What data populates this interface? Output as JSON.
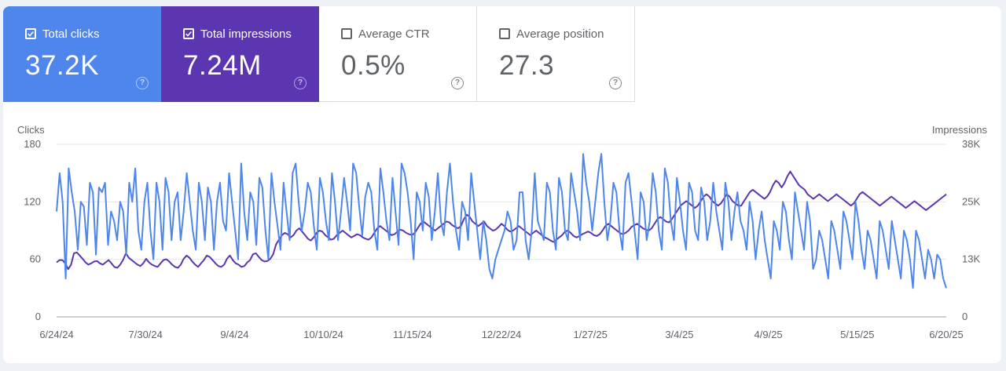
{
  "metrics": {
    "clicks": {
      "label": "Total clicks",
      "value": "37.2K",
      "checked": true,
      "color": "#4e86eb"
    },
    "impressions": {
      "label": "Total impressions",
      "value": "7.24M",
      "checked": true,
      "color": "#5c35b0"
    },
    "ctr": {
      "label": "Average CTR",
      "value": "0.5%",
      "checked": false
    },
    "position": {
      "label": "Average position",
      "value": "27.3",
      "checked": false
    }
  },
  "help_glyph": "?",
  "chart_data": {
    "type": "line",
    "xlabel": "",
    "left_axis_title": "Clicks",
    "right_axis_title": "Impressions",
    "y_left": {
      "range": [
        0,
        180
      ],
      "ticks": [
        "0",
        "60",
        "120",
        "180"
      ]
    },
    "y_right": {
      "range": [
        0,
        38000
      ],
      "ticks": [
        "0",
        "13K",
        "25K",
        "38K"
      ]
    },
    "x_ticks": [
      "6/24/24",
      "7/30/24",
      "9/4/24",
      "10/10/24",
      "11/15/24",
      "12/22/24",
      "1/27/25",
      "3/4/25",
      "4/9/25",
      "5/15/25",
      "6/20/25"
    ],
    "grid": true,
    "series": [
      {
        "name": "Clicks",
        "axis": "left",
        "color": "#4e86eb",
        "values": [
          110,
          150,
          120,
          40,
          155,
          130,
          110,
          70,
          120,
          115,
          75,
          140,
          130,
          65,
          135,
          130,
          140,
          75,
          110,
          100,
          80,
          120,
          110,
          65,
          140,
          120,
          155,
          90,
          70,
          120,
          140,
          90,
          60,
          140,
          120,
          70,
          145,
          130,
          80,
          120,
          130,
          80,
          110,
          150,
          120,
          90,
          70,
          140,
          120,
          80,
          135,
          120,
          70,
          120,
          140,
          100,
          90,
          150,
          120,
          90,
          60,
          160,
          110,
          80,
          130,
          120,
          75,
          145,
          135,
          90,
          60,
          150,
          120,
          95,
          70,
          140,
          110,
          80,
          150,
          160,
          120,
          90,
          110,
          140,
          130,
          95,
          70,
          145,
          130,
          100,
          80,
          150,
          120,
          80,
          110,
          145,
          120,
          90,
          160,
          150,
          115,
          85,
          125,
          140,
          130,
          90,
          70,
          155,
          130,
          100,
          80,
          145,
          110,
          75,
          160,
          150,
          130,
          100,
          60,
          130,
          120,
          90,
          140,
          125,
          80,
          110,
          150,
          100,
          85,
          130,
          160,
          120,
          90,
          70,
          120,
          110,
          80,
          150,
          120,
          90,
          60,
          100,
          80,
          50,
          40,
          60,
          70,
          80,
          90,
          110,
          100,
          70,
          80,
          130,
          130,
          80,
          60,
          90,
          150,
          100,
          90,
          80,
          140,
          130,
          90,
          70,
          145,
          130,
          90,
          80,
          150,
          130,
          110,
          80,
          170,
          140,
          120,
          90,
          120,
          150,
          170,
          120,
          80,
          100,
          140,
          130,
          90,
          70,
          140,
          150,
          120,
          90,
          60,
          130,
          120,
          80,
          100,
          150,
          130,
          90,
          70,
          155,
          140,
          100,
          80,
          145,
          120,
          90,
          70,
          140,
          130,
          90,
          80,
          135,
          120,
          80,
          100,
          140,
          110,
          90,
          70,
          140,
          120,
          80,
          110,
          130,
          100,
          90,
          70,
          120,
          100,
          60,
          90,
          110,
          80,
          60,
          40,
          100,
          90,
          70,
          120,
          110,
          80,
          60,
          130,
          110,
          90,
          70,
          120,
          100,
          50,
          60,
          90,
          80,
          60,
          40,
          100,
          90,
          70,
          50,
          110,
          100,
          80,
          60,
          120,
          100,
          70,
          50,
          90,
          80,
          60,
          40,
          100,
          90,
          70,
          50,
          100,
          80,
          60,
          40,
          90,
          80,
          60,
          30,
          90,
          80,
          60,
          40,
          70,
          60,
          40,
          65,
          60,
          40,
          30
        ]
      },
      {
        "name": "Impressions",
        "axis": "right",
        "color": "#5c35b0",
        "values": [
          12000,
          12500,
          12500,
          11800,
          10500,
          11500,
          14000,
          14200,
          13500,
          12800,
          12000,
          11500,
          11800,
          12200,
          12300,
          11800,
          11500,
          12000,
          12500,
          11800,
          11000,
          10800,
          11500,
          12500,
          14000,
          13000,
          12500,
          12000,
          11500,
          11200,
          11800,
          12800,
          12000,
          11500,
          11200,
          11000,
          11800,
          12500,
          12700,
          12200,
          11500,
          11000,
          10800,
          11500,
          12800,
          13500,
          13000,
          12200,
          11500,
          11000,
          11800,
          12500,
          13500,
          13200,
          12500,
          11800,
          11200,
          11000,
          11500,
          12800,
          13500,
          12500,
          11800,
          11500,
          11000,
          11200,
          12000,
          12500,
          13800,
          14000,
          13200,
          12500,
          12200,
          12300,
          12800,
          13800,
          16000,
          17000,
          18000,
          18500,
          18200,
          17500,
          18000,
          19000,
          19500,
          18800,
          18000,
          17200,
          16800,
          17500,
          18500,
          19000,
          18800,
          18000,
          17500,
          17000,
          17200,
          18000,
          18500,
          19000,
          18500,
          18000,
          17500,
          17800,
          18200,
          18000,
          17500,
          17200,
          17000,
          17500,
          18500,
          19500,
          20000,
          19500,
          19000,
          18500,
          18000,
          18200,
          18800,
          19200,
          19000,
          18500,
          18200,
          18000,
          18500,
          19500,
          20500,
          21000,
          20500,
          20000,
          19500,
          19000,
          19500,
          20000,
          20500,
          21000,
          20800,
          20200,
          19800,
          19500,
          20000,
          21500,
          22500,
          22000,
          21000,
          20500,
          20000,
          20500,
          21000,
          20000,
          19500,
          19000,
          19200,
          19800,
          20500,
          20000,
          19200,
          18800,
          19000,
          19500,
          20000,
          19500,
          19000,
          18500,
          18000,
          18500,
          19000,
          18500,
          18000,
          17500,
          17200,
          16800,
          16500,
          17000,
          17500,
          18000,
          18800,
          19000,
          18500,
          17800,
          17500,
          17800,
          18200,
          18500,
          18800,
          18500,
          18000,
          17800,
          18200,
          19000,
          20000,
          20500,
          20000,
          19500,
          19000,
          18500,
          18200,
          18500,
          19000,
          19800,
          20200,
          20500,
          20000,
          19500,
          19200,
          19000,
          19500,
          20500,
          21500,
          22000,
          21500,
          21000,
          20800,
          21500,
          22500,
          23500,
          24500,
          25000,
          25500,
          25000,
          24500,
          24000,
          24500,
          25500,
          26500,
          27000,
          26500,
          25500,
          25000,
          24500,
          25000,
          26000,
          27000,
          26500,
          25500,
          25000,
          24500,
          24500,
          25500,
          26500,
          27500,
          28000,
          27500,
          27000,
          26500,
          26000,
          26500,
          27500,
          29000,
          30000,
          29500,
          28500,
          29500,
          31000,
          32000,
          31000,
          30000,
          29000,
          28500,
          28000,
          27000,
          26500,
          26000,
          26500,
          27000,
          26500,
          26000,
          25500,
          26000,
          26500,
          27000,
          26500,
          26000,
          25500,
          25000,
          24500,
          25000,
          26000,
          27000,
          27500,
          27000,
          26500,
          26000,
          25500,
          25000,
          24500,
          25000,
          25500,
          26000,
          26500,
          26000,
          25500,
          25000,
          24500,
          24000,
          24500,
          25000,
          25500,
          25000,
          24500,
          24000,
          23500,
          24000,
          24500,
          25000,
          25500,
          26000,
          26500,
          27000
        ]
      }
    ]
  }
}
